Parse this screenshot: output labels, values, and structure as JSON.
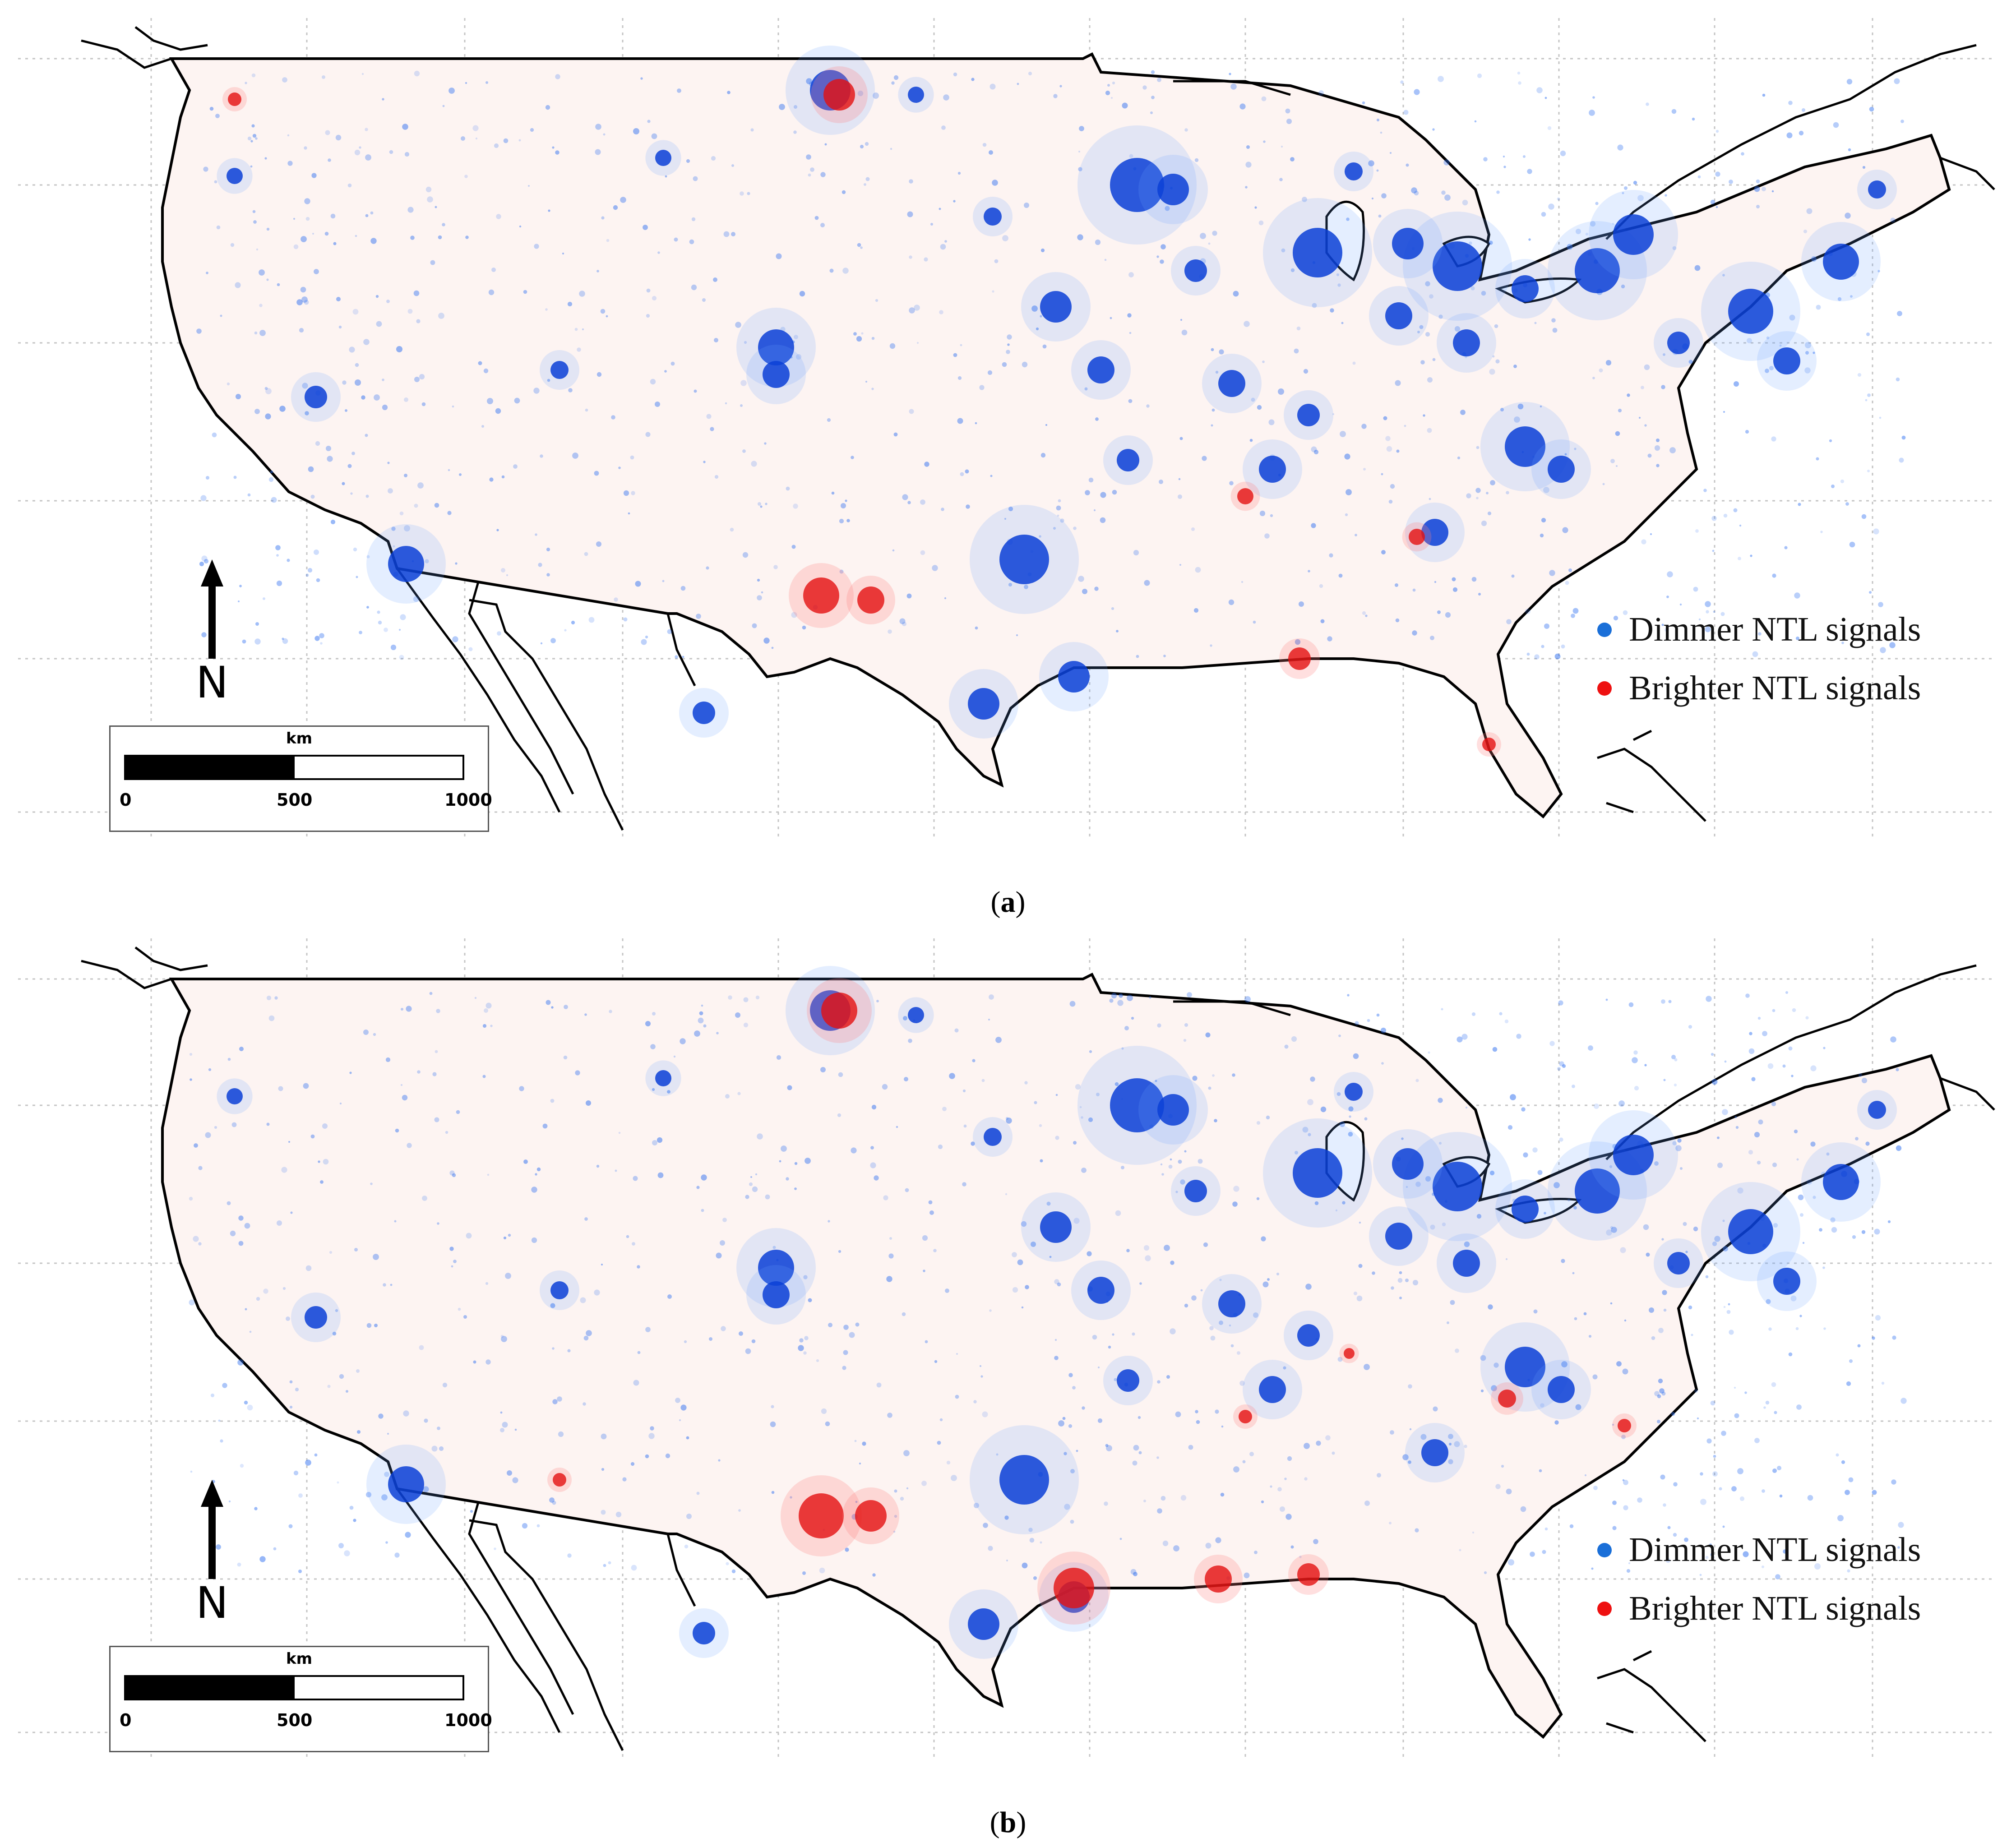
{
  "legend": {
    "dimmer_label": "Dimmer NTL signals",
    "brighter_label": "Brighter NTL signals",
    "dimmer_color": "#1a6fd8",
    "brighter_color": "#ee1111"
  },
  "north_arrow": {
    "label": "N"
  },
  "scale_bar": {
    "unit": "km",
    "ticks": [
      "0",
      "500",
      "1000"
    ]
  },
  "panels": [
    {
      "id": "a",
      "caption_letter": "a"
    },
    {
      "id": "b",
      "caption_letter": "b"
    }
  ],
  "colors": {
    "coastline": "#000000",
    "graticule": "#b8b8b8",
    "land_tint": "#fdf4f2"
  }
}
